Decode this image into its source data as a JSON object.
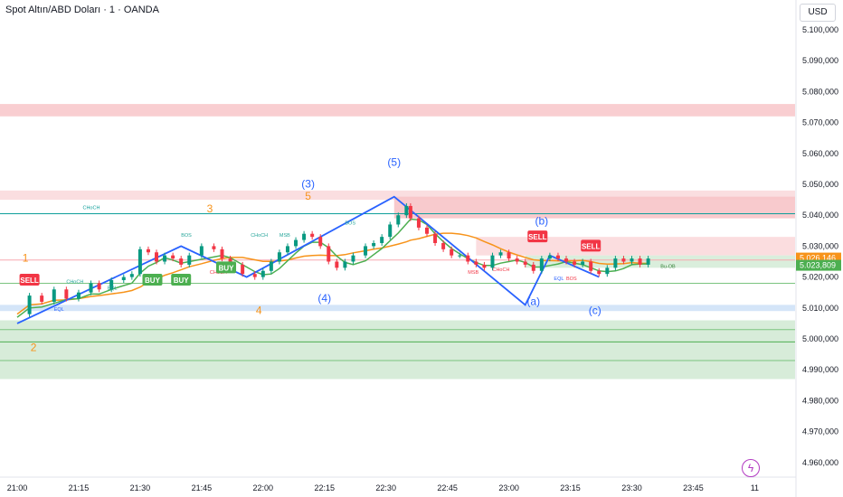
{
  "header": {
    "symbol_title": "Spot Altın/ABD Doları · 1 · OANDA",
    "currency_button": "USD"
  },
  "chart_data": {
    "type": "line",
    "title": "Spot Altın/ABD Doları · 1 · OANDA",
    "y_ticks": [
      "5.100,000",
      "5.090,000",
      "5.080,000",
      "5.070,000",
      "5.060,000",
      "5.050,000",
      "5.040,000",
      "5.030,000",
      "5.020,000",
      "5.010,000",
      "5.000,000",
      "4.990,000",
      "4.980,000",
      "4.970,000",
      "4.960,000"
    ],
    "y_tick_values": [
      5100,
      5090,
      5080,
      5070,
      5060,
      5050,
      5040,
      5030,
      5020,
      5010,
      5000,
      4990,
      4980,
      4970,
      4960
    ],
    "x_ticks": [
      "21:00",
      "21:15",
      "21:30",
      "21:45",
      "22:00",
      "22:15",
      "22:30",
      "22:45",
      "23:00",
      "23:15",
      "23:30",
      "23:45",
      "11"
    ],
    "ylim": [
      4958,
      5106
    ],
    "x_minutes": [
      0,
      170
    ],
    "price_series": [
      {
        "t": 0,
        "p": 5008
      },
      {
        "t": 3,
        "p": 5014
      },
      {
        "t": 6,
        "p": 5012
      },
      {
        "t": 9,
        "p": 5016
      },
      {
        "t": 12,
        "p": 5013
      },
      {
        "t": 15,
        "p": 5015
      },
      {
        "t": 18,
        "p": 5018
      },
      {
        "t": 20,
        "p": 5016
      },
      {
        "t": 23,
        "p": 5019
      },
      {
        "t": 26,
        "p": 5020
      },
      {
        "t": 28,
        "p": 5021
      },
      {
        "t": 30,
        "p": 5029
      },
      {
        "t": 32,
        "p": 5028
      },
      {
        "t": 34,
        "p": 5025
      },
      {
        "t": 36,
        "p": 5027
      },
      {
        "t": 38,
        "p": 5026
      },
      {
        "t": 40,
        "p": 5024
      },
      {
        "t": 42,
        "p": 5027
      },
      {
        "t": 45,
        "p": 5030
      },
      {
        "t": 48,
        "p": 5029
      },
      {
        "t": 50,
        "p": 5026
      },
      {
        "t": 52,
        "p": 5024
      },
      {
        "t": 55,
        "p": 5021
      },
      {
        "t": 58,
        "p": 5020
      },
      {
        "t": 60,
        "p": 5022
      },
      {
        "t": 62,
        "p": 5025
      },
      {
        "t": 64,
        "p": 5028
      },
      {
        "t": 66,
        "p": 5030
      },
      {
        "t": 68,
        "p": 5032
      },
      {
        "t": 70,
        "p": 5034
      },
      {
        "t": 72,
        "p": 5033
      },
      {
        "t": 74,
        "p": 5030
      },
      {
        "t": 76,
        "p": 5025
      },
      {
        "t": 78,
        "p": 5023
      },
      {
        "t": 80,
        "p": 5025
      },
      {
        "t": 82,
        "p": 5027
      },
      {
        "t": 85,
        "p": 5030
      },
      {
        "t": 87,
        "p": 5031
      },
      {
        "t": 89,
        "p": 5033
      },
      {
        "t": 91,
        "p": 5037
      },
      {
        "t": 93,
        "p": 5040
      },
      {
        "t": 95,
        "p": 5043
      },
      {
        "t": 96,
        "p": 5039
      },
      {
        "t": 98,
        "p": 5036
      },
      {
        "t": 100,
        "p": 5034
      },
      {
        "t": 102,
        "p": 5031
      },
      {
        "t": 104,
        "p": 5029
      },
      {
        "t": 106,
        "p": 5027
      },
      {
        "t": 108,
        "p": 5027
      },
      {
        "t": 110,
        "p": 5025
      },
      {
        "t": 112,
        "p": 5024
      },
      {
        "t": 114,
        "p": 5023
      },
      {
        "t": 116,
        "p": 5027
      },
      {
        "t": 118,
        "p": 5028
      },
      {
        "t": 120,
        "p": 5026
      },
      {
        "t": 122,
        "p": 5025
      },
      {
        "t": 124,
        "p": 5024
      },
      {
        "t": 126,
        "p": 5022
      },
      {
        "t": 128,
        "p": 5026
      },
      {
        "t": 130,
        "p": 5027
      },
      {
        "t": 132,
        "p": 5026
      },
      {
        "t": 134,
        "p": 5025
      },
      {
        "t": 136,
        "p": 5024
      },
      {
        "t": 138,
        "p": 5025
      },
      {
        "t": 140,
        "p": 5022
      },
      {
        "t": 142,
        "p": 5021
      },
      {
        "t": 144,
        "p": 5023
      },
      {
        "t": 146,
        "p": 5026
      },
      {
        "t": 148,
        "p": 5025
      },
      {
        "t": 150,
        "p": 5026
      },
      {
        "t": 152,
        "p": 5024
      },
      {
        "t": 154,
        "p": 5026
      }
    ],
    "zones": [
      {
        "from": 5076,
        "to": 5072,
        "color": "#f8c9cc"
      },
      {
        "from": 5048,
        "to": 5045,
        "color": "#fadadd"
      },
      {
        "from": 5046,
        "to": 5039,
        "color": "#f7c4c8",
        "x_start_min": 92
      },
      {
        "from": 5033,
        "to": 5027,
        "color": "#fbd9dc",
        "x_start_min": 112
      },
      {
        "from": 5027,
        "to": 5023,
        "color": "#d6ecd8",
        "x_start_min": 124
      },
      {
        "from": 5011,
        "to": 5009,
        "color": "#cfe2f7"
      },
      {
        "from": 5006,
        "to": 4987,
        "color": "#d3ead5"
      }
    ],
    "levels": [
      {
        "y": 5040.5,
        "color": "#0e9f9a",
        "label": "CHoCH"
      },
      {
        "y": 5025.5,
        "color": "#f7a8b0"
      },
      {
        "y": 5003,
        "color": "#7bc47f"
      },
      {
        "y": 4999,
        "color": "#4caf50"
      },
      {
        "y": 4993,
        "color": "#7bc47f"
      },
      {
        "y": 5018,
        "color": "#7bc47f"
      }
    ],
    "elliott_wave": [
      {
        "t": 0,
        "p": 5005,
        "label": "2"
      },
      {
        "t": 40,
        "p": 5030,
        "label": "(3)"
      },
      {
        "t": 56,
        "p": 5020,
        "label": "(4)"
      },
      {
        "t": 92,
        "p": 5046,
        "label": "(5)"
      },
      {
        "t": 124,
        "p": 5011,
        "label": "(a)"
      },
      {
        "t": 130,
        "p": 5027,
        "label": "(b)"
      },
      {
        "t": 142,
        "p": 5020,
        "label": "(c)"
      }
    ],
    "wave_labels": [
      {
        "text": "(5)",
        "t": 92,
        "p": 5056,
        "color": "#2962ff"
      },
      {
        "text": "(3)",
        "t": 71,
        "p": 5049,
        "color": "#2962ff"
      },
      {
        "text": "(b)",
        "t": 128,
        "p": 5037,
        "color": "#2962ff"
      },
      {
        "text": "(4)",
        "t": 75,
        "p": 5012,
        "color": "#2962ff"
      },
      {
        "text": "(a)",
        "t": 126,
        "p": 5011,
        "color": "#2962ff"
      },
      {
        "text": "(c)",
        "t": 141,
        "p": 5008,
        "color": "#2962ff"
      },
      {
        "text": "5",
        "t": 71,
        "p": 5045,
        "color": "#f7931a"
      },
      {
        "text": "3",
        "t": 47,
        "p": 5041,
        "color": "#f7931a"
      },
      {
        "text": "1",
        "t": 2,
        "p": 5025,
        "color": "#f7931a"
      },
      {
        "text": "4",
        "t": 59,
        "p": 5008,
        "color": "#f7931a"
      },
      {
        "text": "2",
        "t": 4,
        "p": 4996,
        "color": "#f7931a"
      }
    ],
    "small_labels": [
      {
        "text": "CHoCH",
        "t": 16,
        "p": 5042,
        "color": "#0e9f9a"
      },
      {
        "text": "BOS",
        "t": 40,
        "p": 5033,
        "color": "#26a69a"
      },
      {
        "text": "CHoCH",
        "t": 57,
        "p": 5033,
        "color": "#26a69a"
      },
      {
        "text": "MSB",
        "t": 64,
        "p": 5033,
        "color": "#26a69a"
      },
      {
        "text": "BOS",
        "t": 80,
        "p": 5037,
        "color": "#26a69a"
      },
      {
        "text": "CHoCH",
        "t": 12,
        "p": 5018,
        "color": "#26a69a"
      },
      {
        "text": "EQL",
        "t": 22,
        "p": 5016,
        "color": "#26a69a"
      },
      {
        "text": "EQL",
        "t": 9,
        "p": 5009,
        "color": "#2962ff"
      },
      {
        "text": "CHoCH",
        "t": 47,
        "p": 5021,
        "color": "#f23645"
      },
      {
        "text": "MSB",
        "t": 110,
        "p": 5021,
        "color": "#f23645"
      },
      {
        "text": "CHoCH",
        "t": 116,
        "p": 5022,
        "color": "#f23645"
      },
      {
        "text": "EQL",
        "t": 131,
        "p": 5019,
        "color": "#2962ff"
      },
      {
        "text": "BOS",
        "t": 134,
        "p": 5019,
        "color": "#f23645"
      },
      {
        "text": "Bu-OB",
        "t": 157,
        "p": 5023,
        "color": "#2e7d32"
      }
    ],
    "signals": [
      {
        "text": "SELL",
        "t": 3,
        "p": 5019,
        "color": "#f23645"
      },
      {
        "text": "BUY",
        "t": 33,
        "p": 5019,
        "color": "#4caf50"
      },
      {
        "text": "BUY",
        "t": 40,
        "p": 5019,
        "color": "#4caf50"
      },
      {
        "text": "BUY",
        "t": 51,
        "p": 5023,
        "color": "#4caf50"
      },
      {
        "text": "SELL",
        "t": 127,
        "p": 5033,
        "color": "#f23645"
      },
      {
        "text": "SELL",
        "t": 140,
        "p": 5030,
        "color": "#f23645"
      }
    ],
    "price_tags": [
      {
        "text": "5.026,146",
        "p": 5026.146,
        "color": "#f7931a"
      },
      {
        "text": "5.023,809",
        "p": 5023.809,
        "color": "#4caf50"
      }
    ]
  }
}
